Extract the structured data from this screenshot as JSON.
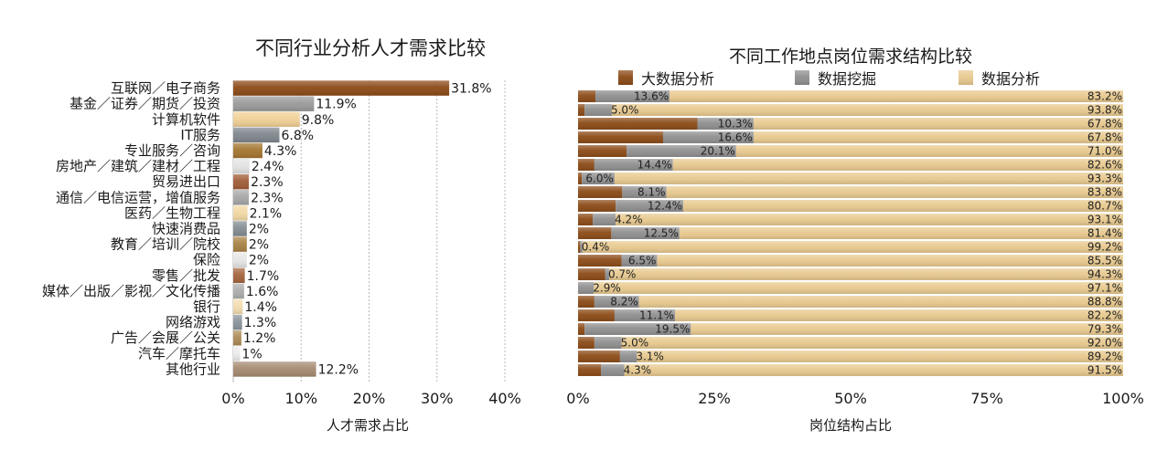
{
  "chart_data": [
    {
      "type": "bar",
      "orientation": "horizontal",
      "title": "不同行业分析人才需求比较",
      "xlabel": "人才需求占比",
      "ylabel": "",
      "xlim": [
        0,
        40
      ],
      "x_ticks": [
        "0%",
        "10%",
        "20%",
        "30%",
        "40%"
      ],
      "grid": true,
      "categories": [
        "互联网／电子商务",
        "基金／证券／期货／投资",
        "计算机软件",
        "IT服务",
        "专业服务／咨询",
        "房地产／建筑／建材／工程",
        "贸易进出口",
        "通信／电信运营，增值服务",
        "医药／生物工程",
        "快速消费品",
        "教育／培训／院校",
        "保险",
        "零售／批发",
        "媒体／出版／影视／文化传播",
        "银行",
        "网络游戏",
        "广告／会展／公关",
        "汽车／摩托车",
        "其他行业"
      ],
      "values": [
        31.8,
        11.9,
        9.8,
        6.8,
        4.3,
        2.4,
        2.3,
        2.3,
        2.1,
        2,
        2,
        2,
        1.7,
        1.6,
        1.4,
        1.3,
        1.2,
        1,
        12.2
      ],
      "value_labels": [
        "31.8%",
        "11.9%",
        "9.8%",
        "6.8%",
        "4.3%",
        "2.4%",
        "2.3%",
        "2.3%",
        "2.1%",
        "2%",
        "2%",
        "2%",
        "1.7%",
        "1.6%",
        "1.4%",
        "1.3%",
        "1.2%",
        "1%",
        "12.2%"
      ],
      "colors": [
        "#8b4a16",
        "#9a9a9a",
        "#f1d096",
        "#7f868d",
        "#a47530",
        "#e3e3e3",
        "#a05c36",
        "#a7a7a7",
        "#f2d8a4",
        "#848d92",
        "#a88245",
        "#e6e6e6",
        "#a4653e",
        "#adadad",
        "#f3dcaf",
        "#8a949b",
        "#ac8b56",
        "#ececec",
        "#a58a70"
      ]
    },
    {
      "type": "bar",
      "orientation": "horizontal",
      "stacked": true,
      "title": "不同工作地点岗位需求结构比较",
      "xlabel": "岗位结构占比",
      "ylabel": "",
      "xlim": [
        0,
        100
      ],
      "x_ticks": [
        "0%",
        "25%",
        "50%",
        "75%",
        "100%"
      ],
      "legend_position": "top",
      "series": [
        {
          "name": "大数据分析",
          "color": "#8b4a16",
          "values": [
            3.2,
            1.2,
            21.9,
            15.6,
            8.9,
            3.0,
            0.7,
            8.1,
            6.9,
            2.7,
            6.1,
            0.4,
            8.0,
            5.0,
            0.0,
            3.0,
            6.7,
            1.2,
            3.0,
            7.7,
            4.2
          ],
          "labels": [
            "",
            "",
            "",
            "",
            "",
            "",
            "",
            "",
            "",
            "",
            "",
            "",
            "",
            "",
            "",
            "",
            "",
            "",
            "",
            "",
            ""
          ]
        },
        {
          "name": "数据挖掘",
          "color": "#8f8f8f",
          "values": [
            13.6,
            5.0,
            10.3,
            16.6,
            20.1,
            14.4,
            6.0,
            8.1,
            12.4,
            4.2,
            12.5,
            0.4,
            6.5,
            0.7,
            2.9,
            8.2,
            11.1,
            19.5,
            5.0,
            3.1,
            4.3
          ],
          "labels": [
            "13.6%",
            "5.0%",
            "10.3%",
            "16.6%",
            "20.1%",
            "14.4%",
            "6.0%",
            "8.1%",
            "12.4%",
            "4.2%",
            "12.5%",
            "0.4%",
            "6.5%",
            "0.7%",
            "2.9%",
            "8.2%",
            "11.1%",
            "19.5%",
            "5.0%",
            "3.1%",
            "4.3%"
          ]
        },
        {
          "name": "数据分析",
          "color": "#e8c98e",
          "values": [
            83.2,
            93.8,
            67.8,
            67.8,
            71.0,
            82.6,
            93.3,
            83.8,
            80.7,
            93.1,
            81.4,
            99.2,
            85.5,
            94.3,
            97.1,
            88.8,
            82.2,
            79.3,
            92.0,
            89.2,
            91.5
          ],
          "labels": [
            "83.2%",
            "93.8%",
            "67.8%",
            "67.8%",
            "71.0%",
            "82.6%",
            "93.3%",
            "83.8%",
            "80.7%",
            "93.1%",
            "81.4%",
            "99.2%",
            "85.5%",
            "94.3%",
            "97.1%",
            "88.8%",
            "82.2%",
            "79.3%",
            "92.0%",
            "89.2%",
            "91.5%"
          ]
        }
      ]
    }
  ]
}
